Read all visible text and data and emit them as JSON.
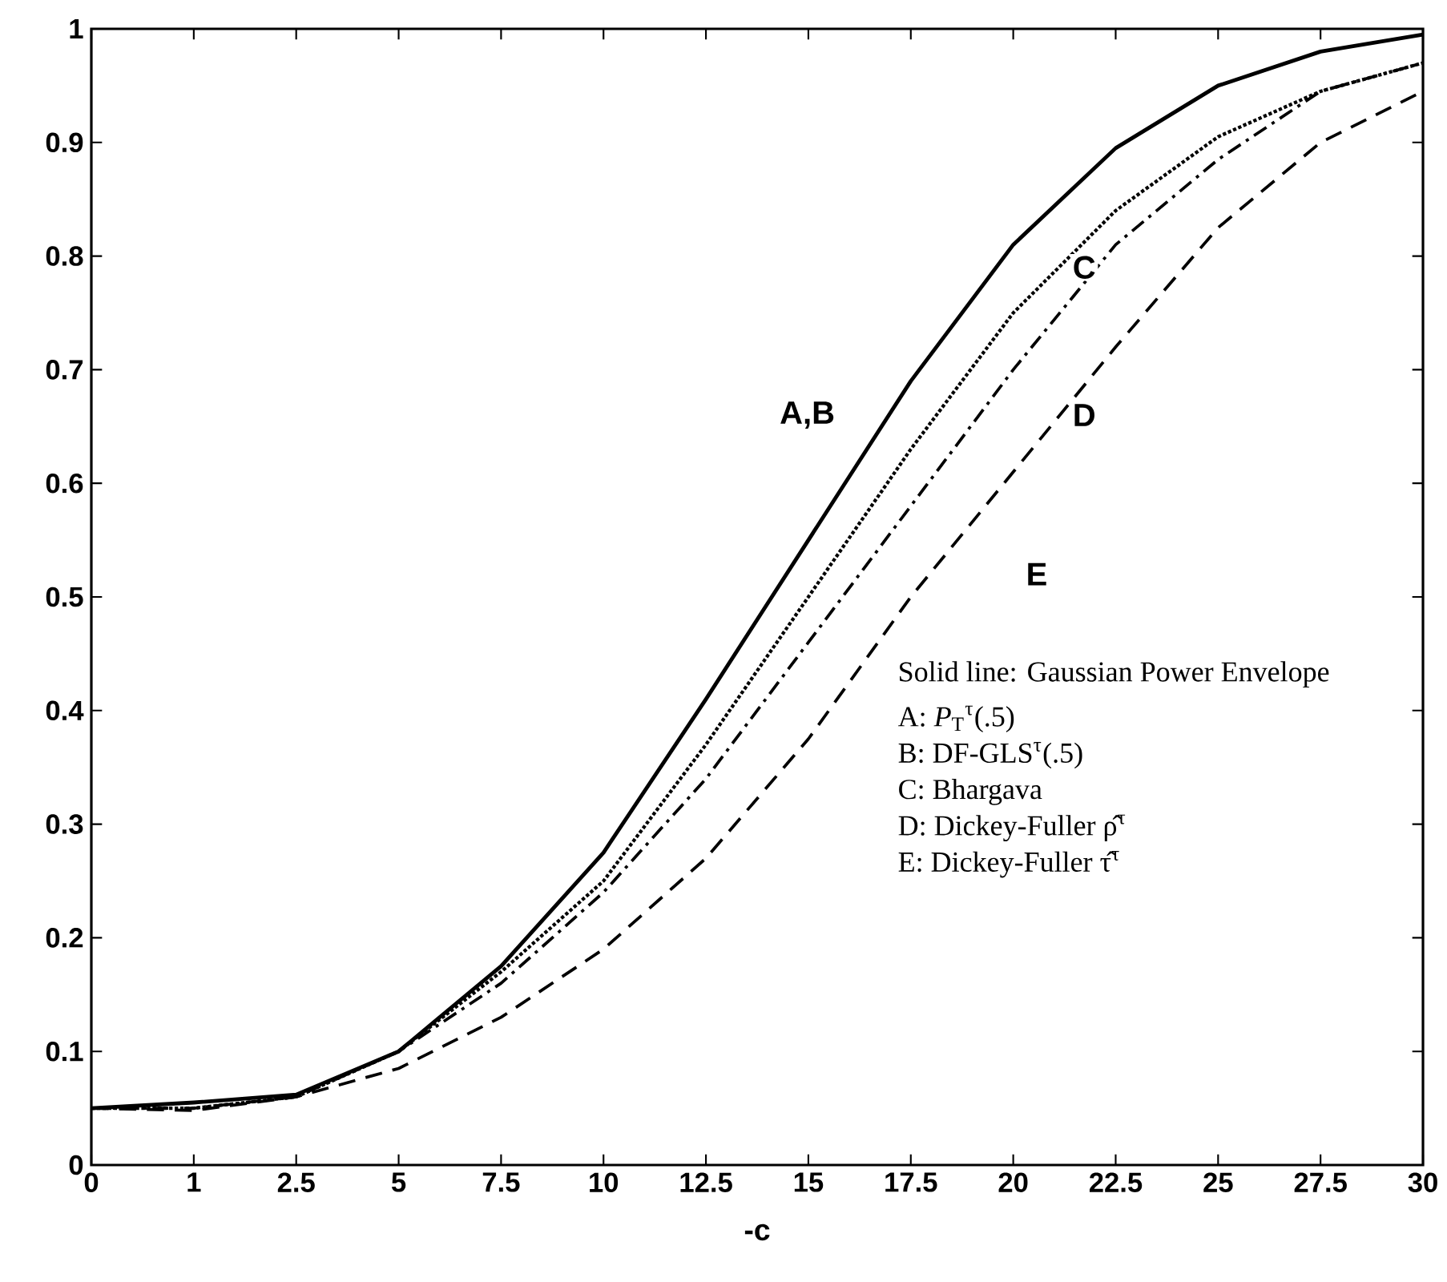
{
  "chart_data": {
    "type": "line",
    "xlabel": "-c",
    "categories": [
      "0",
      "1",
      "2.5",
      "5",
      "7.5",
      "10",
      "12.5",
      "15",
      "17.5",
      "20",
      "22.5",
      "25",
      "27.5",
      "30"
    ],
    "ylim": [
      0,
      1
    ],
    "yticks": [
      0,
      0.1,
      0.2,
      0.3,
      0.4,
      0.5,
      0.6,
      0.7,
      0.8,
      0.9,
      1
    ],
    "series": [
      {
        "color": "#000000",
        "line_style": "solid",
        "values": [
          0.05,
          0.055,
          0.062,
          0.1,
          0.175,
          0.275,
          0.41,
          0.55,
          0.69,
          0.81,
          0.895,
          0.95,
          0.98,
          0.995
        ]
      },
      {
        "color": "#000000",
        "line_style": "dotted",
        "values": [
          0.05,
          0.05,
          0.06,
          0.1,
          0.17,
          0.25,
          0.37,
          0.5,
          0.63,
          0.75,
          0.84,
          0.905,
          0.945,
          0.97
        ]
      },
      {
        "color": "#000000",
        "line_style": "dashdot",
        "values": [
          0.05,
          0.05,
          0.06,
          0.1,
          0.16,
          0.24,
          0.34,
          0.46,
          0.58,
          0.7,
          0.81,
          0.885,
          0.945,
          0.97
        ]
      },
      {
        "color": "#000000",
        "line_style": "dashed",
        "values": [
          0.05,
          0.048,
          0.06,
          0.085,
          0.13,
          0.19,
          0.27,
          0.375,
          0.5,
          0.61,
          0.72,
          0.825,
          0.9,
          0.945
        ]
      }
    ],
    "annotations": [
      "A,B",
      "C",
      "D",
      "E",
      "Solid line:  Gaussian Power Envelope",
      "A:  *P*$_{T}$$^{τ}$(.5)",
      "B:  DF-GLS$^{τ}$(.5)",
      "C:  Bhargava",
      "D:  Dickey-Fuller ρ̂$^{τ}$",
      "E:  Dickey-Fuller τ̂$^{τ}$"
    ]
  }
}
